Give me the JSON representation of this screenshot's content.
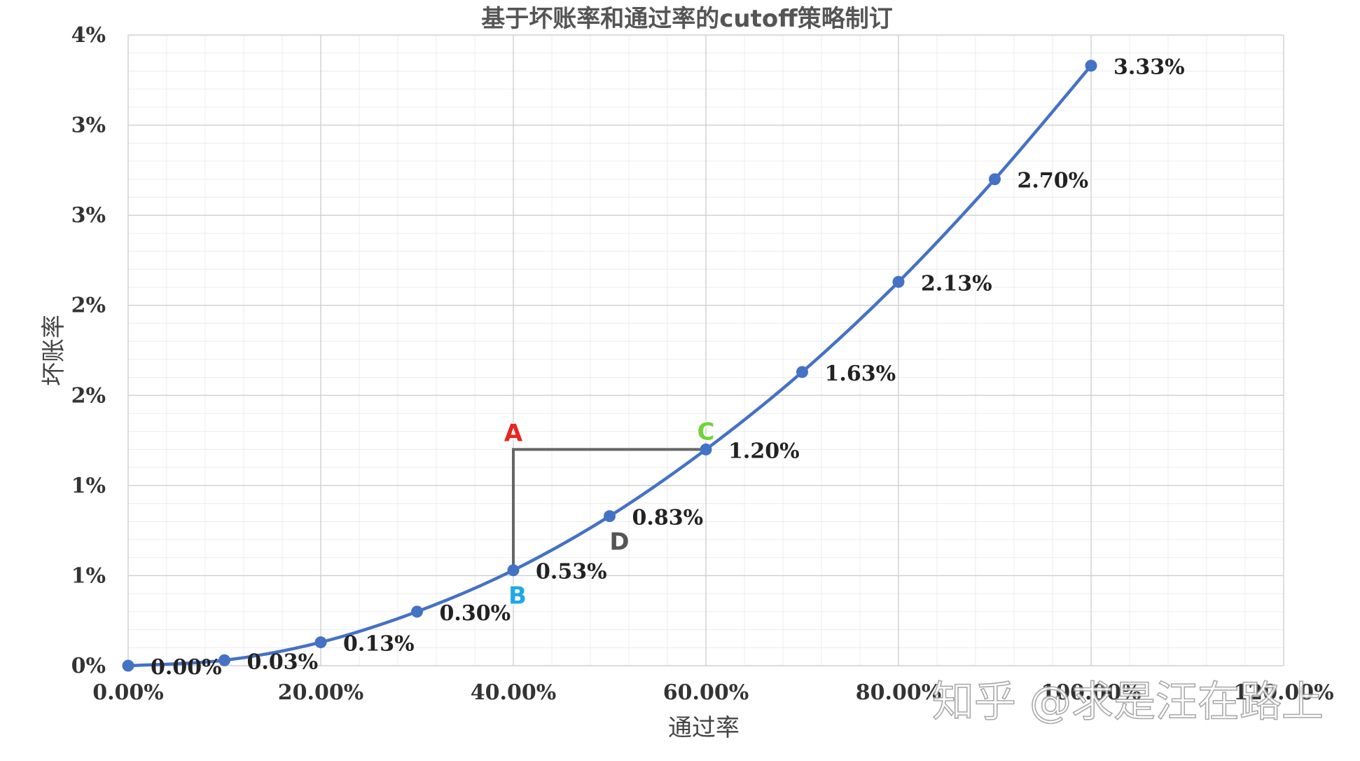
{
  "chart_data": {
    "type": "line",
    "title": "基于坏账率和通过率的cutoff策略制订",
    "xlabel": "通过率",
    "ylabel": "坏账率",
    "xlim": [
      0,
      120
    ],
    "ylim": [
      0,
      3.5
    ],
    "x_tick_values": [
      0,
      20,
      40,
      60,
      80,
      100,
      120
    ],
    "x_tick_labels": [
      "0.00%",
      "20.00%",
      "40.00%",
      "60.00%",
      "80.00%",
      "100.00%",
      "120.00%"
    ],
    "y_tick_values": [
      0,
      0.5,
      1.0,
      1.5,
      2.0,
      2.5,
      3.0,
      3.5
    ],
    "y_tick_labels": [
      "0%",
      "1%",
      "1%",
      "2%",
      "2%",
      "3%",
      "3%",
      "4%"
    ],
    "grid": true,
    "legend": "none",
    "color": "#4472c4",
    "series": [
      {
        "x": [
          0,
          10,
          20,
          30,
          40,
          50,
          60,
          70,
          80,
          90,
          100
        ],
        "values": [
          0.0,
          0.03,
          0.13,
          0.3,
          0.53,
          0.83,
          1.2,
          1.63,
          2.13,
          2.7,
          3.33
        ],
        "data_labels": [
          "0.00%",
          "0.03%",
          "0.13%",
          "0.30%",
          "0.53%",
          "0.83%",
          "1.20%",
          "1.63%",
          "2.13%",
          "2.70%",
          "3.33%"
        ]
      }
    ],
    "annotations": [
      {
        "label": "A",
        "x": 40,
        "y": 1.2,
        "color": "#e8251f"
      },
      {
        "label": "B",
        "x": 40,
        "y": 0.53,
        "color": "#1fa8e8"
      },
      {
        "label": "C",
        "x": 60,
        "y": 1.2,
        "color": "#6fd43a"
      },
      {
        "label": "D",
        "x": 50,
        "y": 0.83,
        "color": "#555555"
      }
    ],
    "guide_lines_color": "#666666"
  },
  "watermark": "知乎 @求是汪在路上"
}
